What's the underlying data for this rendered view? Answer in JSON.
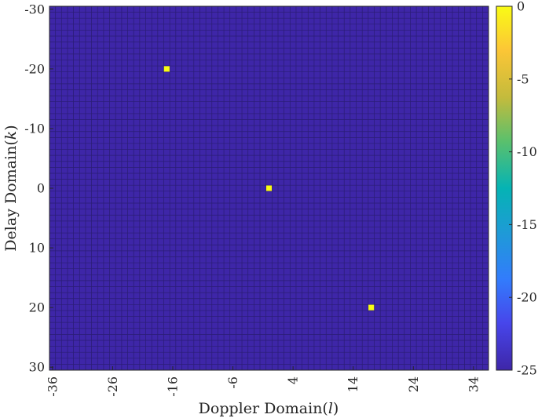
{
  "chart_data": {
    "type": "heatmap",
    "title": "",
    "xlabel": "Doppler Domain(l)",
    "xlabel_parts": {
      "prefix": "Doppler Domain(",
      "var": "l",
      "suffix": ")"
    },
    "ylabel": "Delay Domain(k)",
    "ylabel_parts": {
      "prefix": "Delay Domain(",
      "var": "k",
      "suffix": ")"
    },
    "x_range": [
      -36,
      36
    ],
    "y_range": [
      -30,
      30
    ],
    "y_reversed": true,
    "x_ticks": [
      -36,
      -26,
      -16,
      -6,
      4,
      14,
      24,
      34
    ],
    "y_ticks": [
      -30,
      -20,
      -10,
      0,
      10,
      20,
      30
    ],
    "colorbar": {
      "min": -25,
      "max": 0,
      "ticks": [
        0,
        -5,
        -10,
        -15,
        -20,
        -25
      ],
      "colormap": "parula"
    },
    "background_value": -25,
    "cell_grid": true,
    "peaks": [
      {
        "l": -17,
        "k": -20,
        "value": 0
      },
      {
        "l": 0,
        "k": 0,
        "value": 0
      },
      {
        "l": 17,
        "k": 20,
        "value": 0
      }
    ]
  },
  "colors": {
    "low": "#3e26a8",
    "high": "#f9fb15",
    "grid": "#2a1d73",
    "axis": "#262626"
  }
}
